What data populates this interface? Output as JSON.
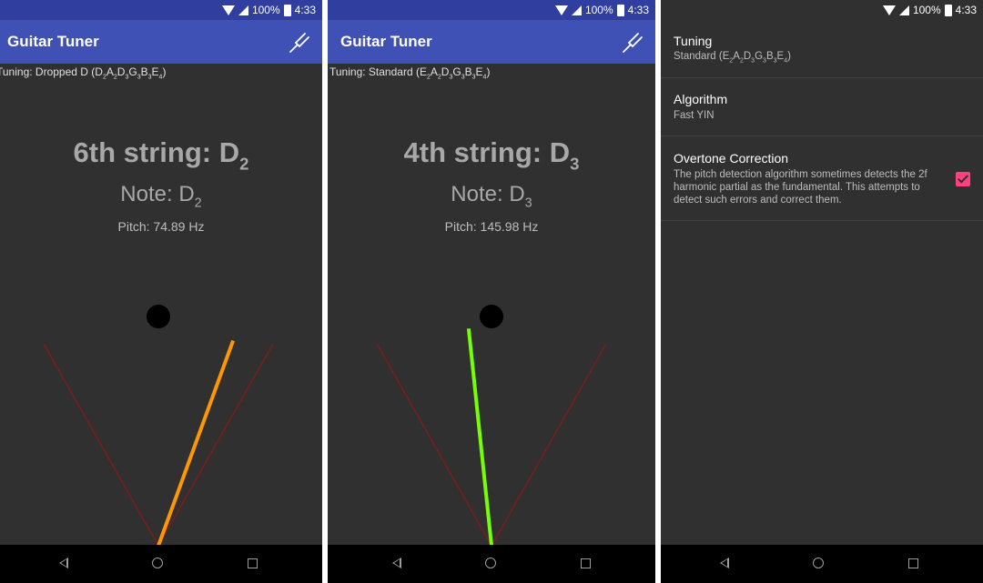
{
  "status": {
    "battery": "100%",
    "time": "4:33"
  },
  "app_title": "Guitar Tuner",
  "screen1": {
    "tuning_label": "Tuning: Dropped D (D",
    "tuning_notes": [
      [
        "D",
        "2"
      ],
      [
        "A",
        "2"
      ],
      [
        "D",
        "3"
      ],
      [
        "G",
        "3"
      ],
      [
        "B",
        "3"
      ],
      [
        "E",
        "4"
      ]
    ],
    "string_label": "6th string: D",
    "string_octave": "2",
    "note_label": "Note: D",
    "note_octave": "2",
    "pitch": "Pitch: 74.89 Hz",
    "needle_color": "#FF9800",
    "needle_angle_deg": 20
  },
  "screen2": {
    "tuning_label": "Tuning: Standard (E",
    "tuning_notes": [
      [
        "E",
        "2"
      ],
      [
        "A",
        "2"
      ],
      [
        "D",
        "3"
      ],
      [
        "G",
        "3"
      ],
      [
        "B",
        "3"
      ],
      [
        "E",
        "4"
      ]
    ],
    "string_label": "4th string: D",
    "string_octave": "3",
    "note_label": "Note: D",
    "note_octave": "3",
    "pitch": "Pitch: 145.98 Hz",
    "needle_color": "#76FF03",
    "needle_angle_deg": -6
  },
  "settings": {
    "tuning": {
      "title": "Tuning",
      "summary": "Standard (E"
    },
    "algorithm": {
      "title": "Algorithm",
      "summary": "Fast YIN"
    },
    "overtone": {
      "title": "Overtone Correction",
      "description": "The pitch detection algorithm sometimes detects the 2f harmonic partial as the fundamental. This attempts to detect such errors and correct them.",
      "checked": true
    }
  },
  "colors": {
    "primary": "#3F51B5",
    "primary_dark": "#303F9F",
    "accent": "#FF4081",
    "background": "#303030",
    "range_line": "#7a1c1c"
  },
  "icons": {
    "tune": "tuning-fork-icon",
    "back": "back-icon",
    "home": "home-icon",
    "recents": "recents-icon"
  }
}
